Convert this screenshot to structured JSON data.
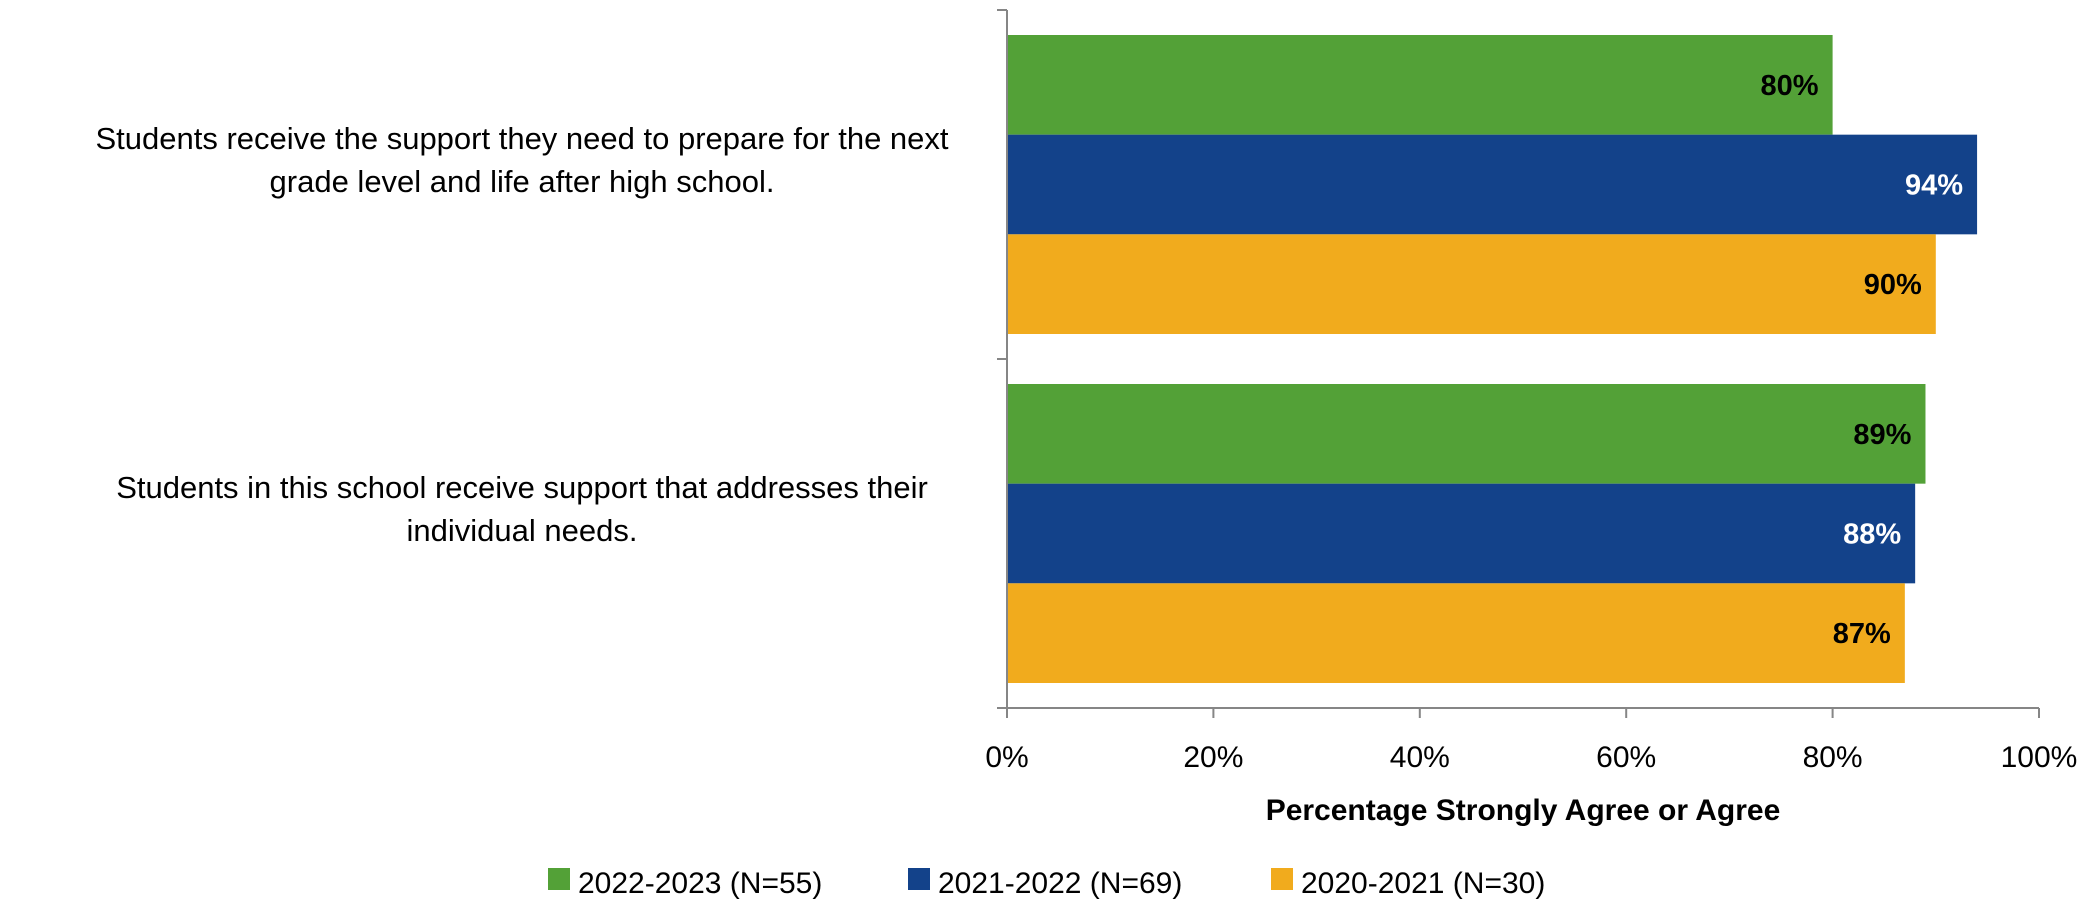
{
  "chart_data": {
    "type": "bar",
    "orientation": "horizontal",
    "categories": [
      "Students receive the support they need to prepare for the next grade level and life after high school.",
      "Students in this school receive support that addresses their individual needs."
    ],
    "category_lines": [
      [
        "Students receive the support they need to prepare for the next",
        "grade level and life after high school."
      ],
      [
        "Students in this school receive support that addresses their",
        "individual needs."
      ]
    ],
    "series": [
      {
        "name": "2022-2023 (N=55)",
        "values": [
          80,
          89
        ],
        "labels": [
          "80%",
          "89%"
        ],
        "color": "#53A137",
        "label_color": "#000000"
      },
      {
        "name": "2021-2022 (N=69)",
        "values": [
          94,
          88
        ],
        "labels": [
          "94%",
          "88%"
        ],
        "color": "#13428A",
        "label_color": "#ffffff"
      },
      {
        "name": "2020-2021 (N=30)",
        "values": [
          90,
          87
        ],
        "labels": [
          "90%",
          "87%"
        ],
        "color": "#F1AB1D",
        "label_color": "#000000"
      }
    ],
    "xlabel": "Percentage Strongly Agree or Agree",
    "xlim": [
      0,
      100
    ],
    "x_ticks": [
      "0%",
      "20%",
      "40%",
      "60%",
      "80%",
      "100%"
    ],
    "grid": false,
    "legend_position": "bottom"
  }
}
